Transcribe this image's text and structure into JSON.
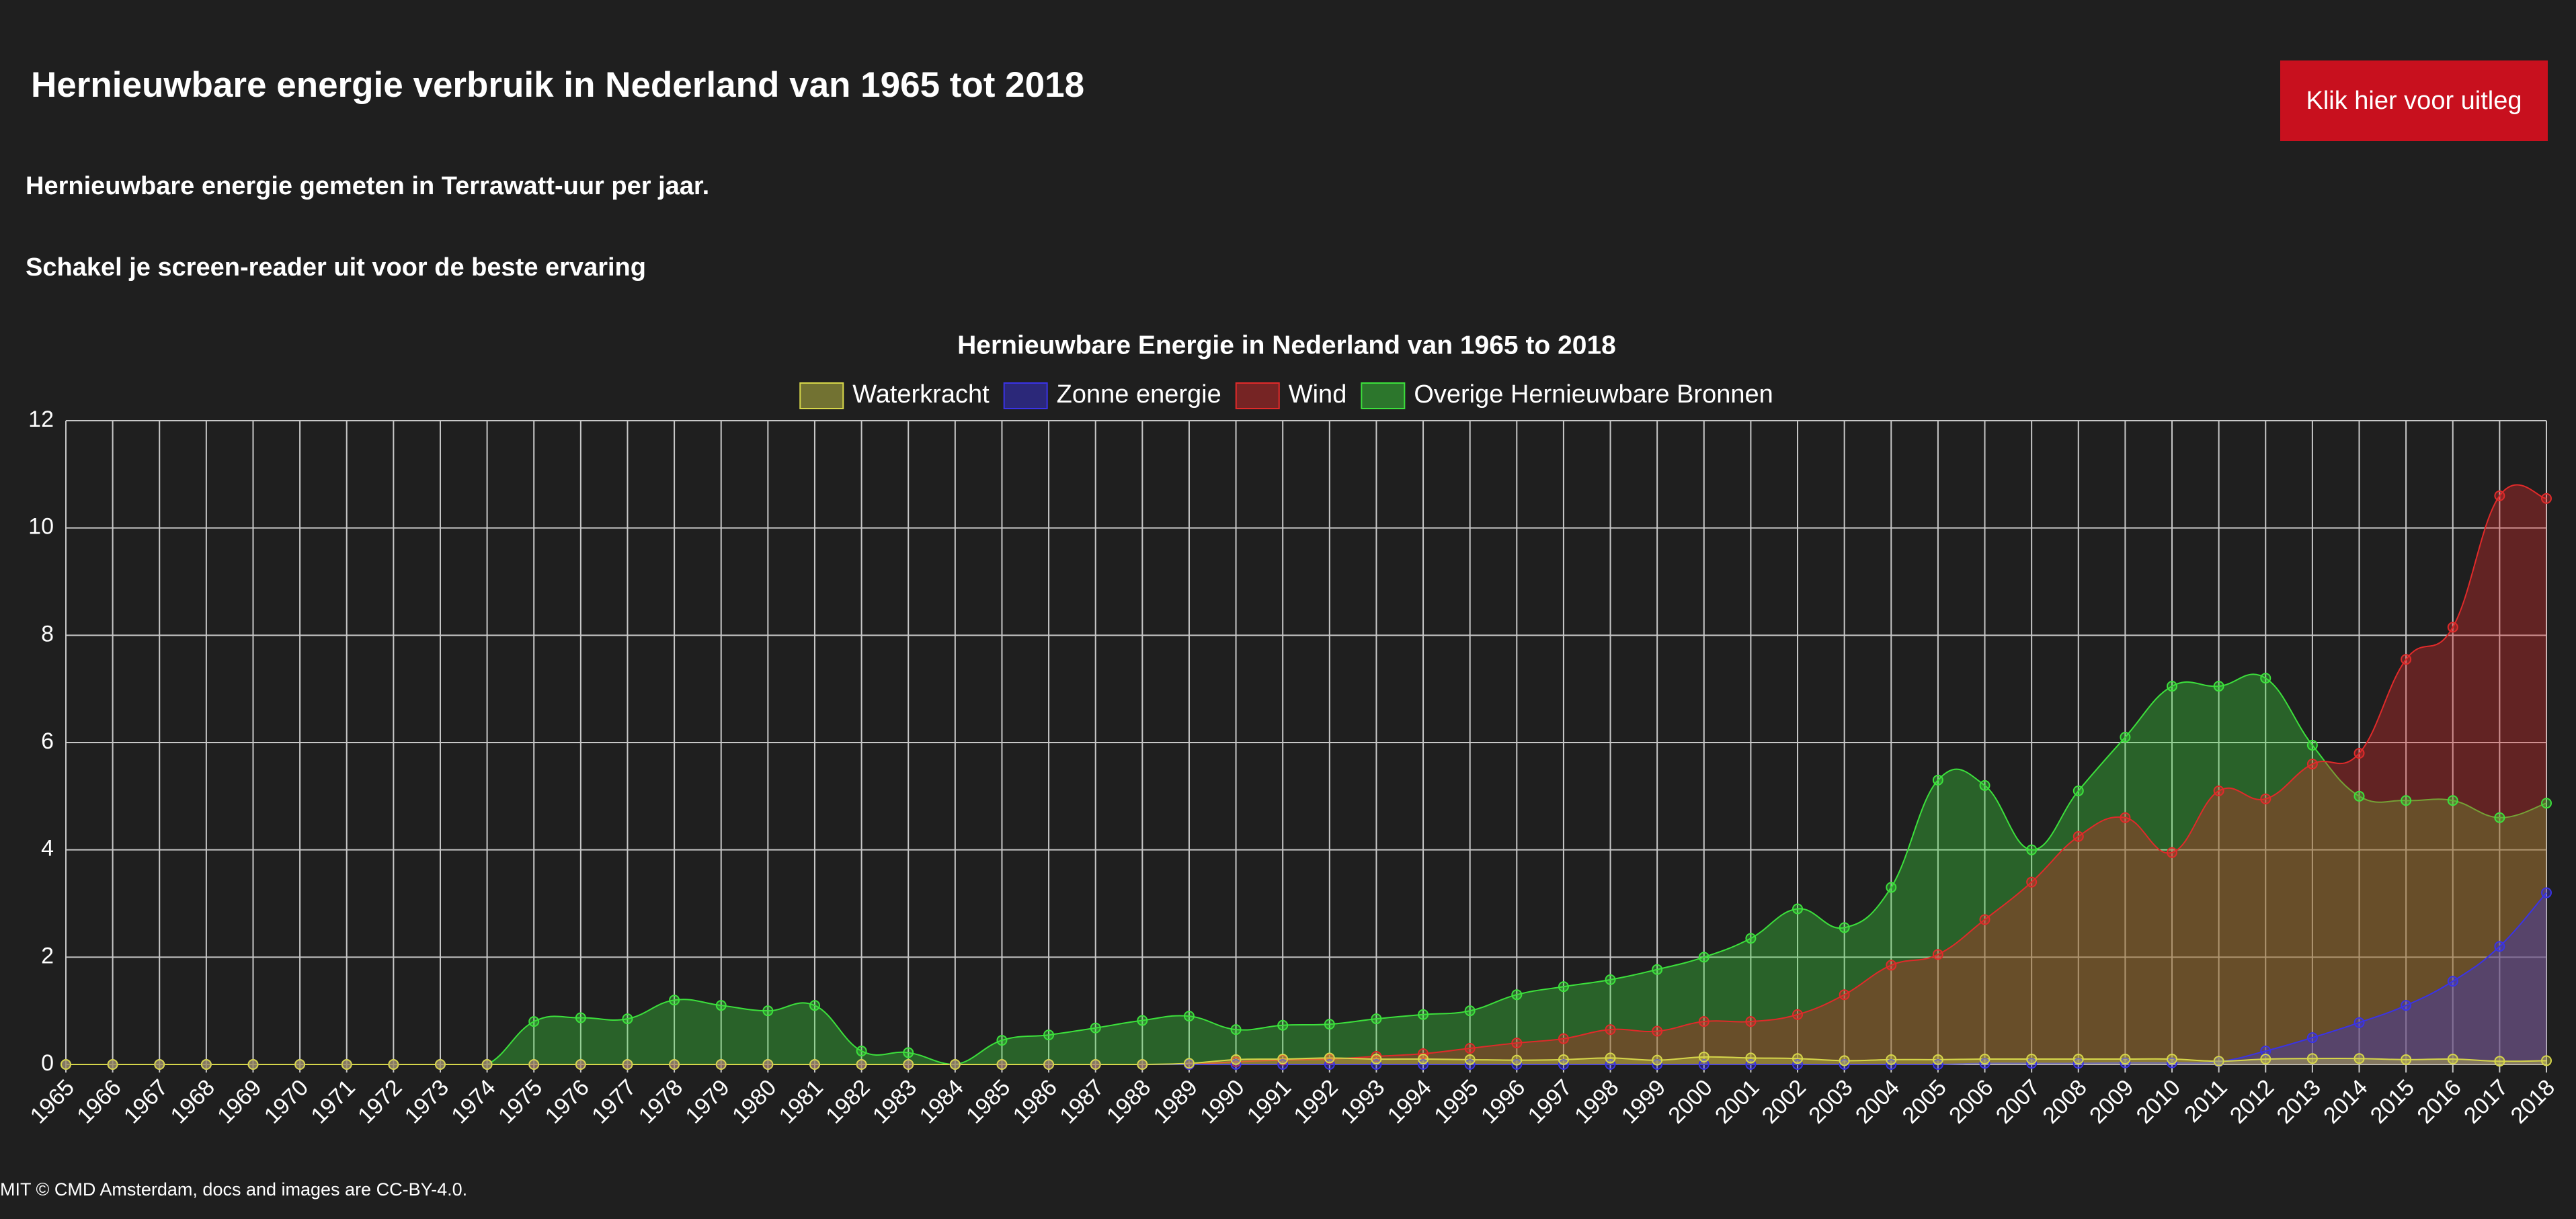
{
  "page": {
    "title": "Hernieuwbare energie verbruik in Nederland van 1965 tot 2018",
    "button": "Klik hier voor uitleg",
    "subtitle": "Hernieuwbare energie gemeten in Terrawatt-uur per jaar.",
    "note": "Schakel je screen-reader uit voor de beste ervaring",
    "footer": "MIT © CMD Amsterdam, docs and images are CC-BY-4.0."
  },
  "chart_data": {
    "type": "area",
    "title": "Hernieuwbare Energie in Nederland van 1965 to 2018",
    "categories": [
      "1965",
      "1966",
      "1967",
      "1968",
      "1969",
      "1970",
      "1971",
      "1972",
      "1973",
      "1974",
      "1975",
      "1976",
      "1977",
      "1978",
      "1979",
      "1980",
      "1981",
      "1982",
      "1983",
      "1984",
      "1985",
      "1986",
      "1987",
      "1988",
      "1989",
      "1990",
      "1991",
      "1992",
      "1993",
      "1994",
      "1995",
      "1996",
      "1997",
      "1998",
      "1999",
      "2000",
      "2001",
      "2002",
      "2003",
      "2004",
      "2005",
      "2006",
      "2007",
      "2008",
      "2009",
      "2010",
      "2011",
      "2012",
      "2013",
      "2014",
      "2015",
      "2016",
      "2017",
      "2018"
    ],
    "ylim": [
      0,
      12
    ],
    "yticks": [
      0,
      2,
      4,
      6,
      8,
      10,
      12
    ],
    "grid": true,
    "legend": "top",
    "series": [
      {
        "name": "Waterkracht",
        "color": "#d6d64a",
        "values": [
          0,
          0,
          0,
          0,
          0,
          0,
          0,
          0,
          0,
          0,
          0,
          0,
          0,
          0,
          0,
          0,
          0,
          0,
          0,
          0,
          0,
          0,
          0,
          0,
          0.02,
          0.09,
          0.1,
          0.12,
          0.1,
          0.1,
          0.09,
          0.08,
          0.09,
          0.12,
          0.08,
          0.14,
          0.12,
          0.11,
          0.07,
          0.09,
          0.09,
          0.1,
          0.1,
          0.1,
          0.1,
          0.1,
          0.06,
          0.1,
          0.11,
          0.11,
          0.09,
          0.1,
          0.06,
          0.07
        ]
      },
      {
        "name": "Zonne energie",
        "color": "#3a33e6",
        "values": [
          0,
          0,
          0,
          0,
          0,
          0,
          0,
          0,
          0,
          0,
          0,
          0,
          0,
          0,
          0,
          0,
          0,
          0,
          0,
          0,
          0,
          0,
          0,
          0,
          0,
          0,
          0,
          0,
          0,
          0,
          0,
          0,
          0,
          0,
          0,
          0,
          0,
          0,
          0,
          0,
          0,
          0.02,
          0.02,
          0.02,
          0.03,
          0.03,
          0.05,
          0.25,
          0.5,
          0.78,
          1.1,
          1.55,
          2.2,
          3.2
        ]
      },
      {
        "name": "Wind",
        "color": "#e02a2a",
        "values": [
          0,
          0,
          0,
          0,
          0,
          0,
          0,
          0,
          0,
          0,
          0,
          0,
          0,
          0,
          0,
          0,
          0,
          0,
          0,
          0,
          0,
          0,
          0,
          0,
          0,
          0.05,
          0.08,
          0.1,
          0.15,
          0.2,
          0.3,
          0.4,
          0.48,
          0.65,
          0.62,
          0.8,
          0.8,
          0.93,
          1.3,
          1.85,
          2.05,
          2.7,
          3.4,
          4.25,
          4.6,
          3.95,
          5.1,
          4.95,
          5.6,
          5.8,
          7.55,
          8.15,
          10.6,
          10.55
        ]
      },
      {
        "name": "Overige Hernieuwbare Bronnen",
        "color": "#3ce03c",
        "values": [
          0,
          0,
          0,
          0,
          0,
          0,
          0,
          0,
          0,
          0,
          0.8,
          0.87,
          0.85,
          1.2,
          1.1,
          1.0,
          1.1,
          0.25,
          0.22,
          0,
          0.45,
          0.55,
          0.68,
          0.82,
          0.9,
          0.65,
          0.73,
          0.75,
          0.85,
          0.93,
          1.0,
          1.3,
          1.45,
          1.58,
          1.77,
          2.0,
          2.35,
          2.9,
          2.55,
          3.3,
          5.3,
          5.2,
          4.0,
          5.1,
          6.1,
          7.05,
          7.05,
          7.2,
          5.95,
          5.0,
          4.92,
          4.92,
          4.6,
          4.87
        ]
      }
    ]
  }
}
